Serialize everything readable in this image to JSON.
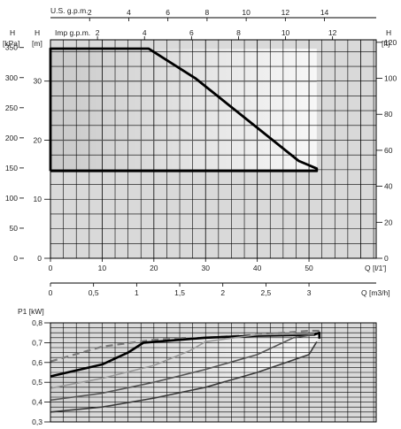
{
  "chart_data": [
    {
      "type": "line",
      "x_axes": {
        "usgpm": {
          "label": "U.S. g.p.m.",
          "ticks": [
            2,
            4,
            6,
            8,
            10,
            12,
            14
          ]
        },
        "impgpm": {
          "label": "Imp g.p.m.",
          "ticks": [
            2,
            4,
            6,
            8,
            10,
            12
          ]
        },
        "lpm": {
          "label": "Q [l/1']",
          "ticks": [
            0,
            10,
            20,
            30,
            40,
            50
          ],
          "range": [
            0,
            63
          ]
        },
        "m3h": {
          "label": "Q [m3/h]",
          "ticks": [
            "0",
            "0,5",
            "1",
            "1,5",
            "2",
            "2,5",
            "3"
          ]
        }
      },
      "y_axes": {
        "kpa": {
          "header": "H",
          "unit": "[kPa]",
          "ticks": [
            0,
            50,
            100,
            150,
            200,
            250,
            300,
            350
          ]
        },
        "m": {
          "header": "H",
          "unit": "[m]",
          "ticks": [
            0,
            10,
            20,
            30
          ],
          "range": [
            0,
            37
          ]
        },
        "ft": {
          "header": "H",
          "unit": "[ft]",
          "ticks": [
            0,
            20,
            40,
            60,
            80,
            100,
            120
          ]
        }
      },
      "series": [
        {
          "role": "max-head-curve",
          "x": [
            0,
            19,
            28,
            38,
            48,
            51.5,
            51.5
          ],
          "y": [
            35.5,
            35.5,
            30.5,
            23.5,
            16.5,
            15.2,
            14.8
          ]
        }
      ],
      "reference_lines": [
        {
          "axis": "y",
          "value": 30
        },
        {
          "axis": "y",
          "value": 20
        }
      ],
      "operating_area": {
        "x_from": 0,
        "x_to": 51.5,
        "y_from": 14.8,
        "y_to": 35.5
      },
      "grid": true
    },
    {
      "type": "line",
      "ylabel": "P1 [kW]",
      "ylim": [
        0.3,
        0.8
      ],
      "y_ticks": [
        "0,3",
        "0,4",
        "0,5",
        "0,6",
        "0,7",
        "0,8"
      ],
      "xlim": [
        0,
        63
      ],
      "series": [
        {
          "style": "dashed",
          "x": [
            0,
            10,
            20,
            30,
            40,
            50,
            52
          ],
          "y": [
            0.605,
            0.68,
            0.715,
            0.725,
            0.74,
            0.76,
            0.76
          ]
        },
        {
          "style": "max-solid",
          "x": [
            0,
            5,
            10,
            15,
            18,
            30,
            40,
            51,
            52,
            52
          ],
          "y": [
            0.53,
            0.56,
            0.59,
            0.65,
            0.7,
            0.725,
            0.735,
            0.74,
            0.75,
            0.72
          ]
        },
        {
          "style": "solid",
          "x": [
            0,
            10,
            20,
            27,
            30,
            40,
            51
          ],
          "y": [
            0.47,
            0.52,
            0.585,
            0.66,
            0.705,
            0.74,
            0.745
          ]
        },
        {
          "style": "solid",
          "x": [
            0,
            10,
            20,
            30,
            40,
            47,
            51
          ],
          "y": [
            0.41,
            0.445,
            0.5,
            0.565,
            0.64,
            0.725,
            0.74
          ]
        },
        {
          "style": "solid",
          "x": [
            0,
            10,
            20,
            30,
            40,
            50,
            51.5
          ],
          "y": [
            0.35,
            0.375,
            0.42,
            0.475,
            0.55,
            0.64,
            0.705
          ]
        }
      ],
      "grid": true
    }
  ]
}
